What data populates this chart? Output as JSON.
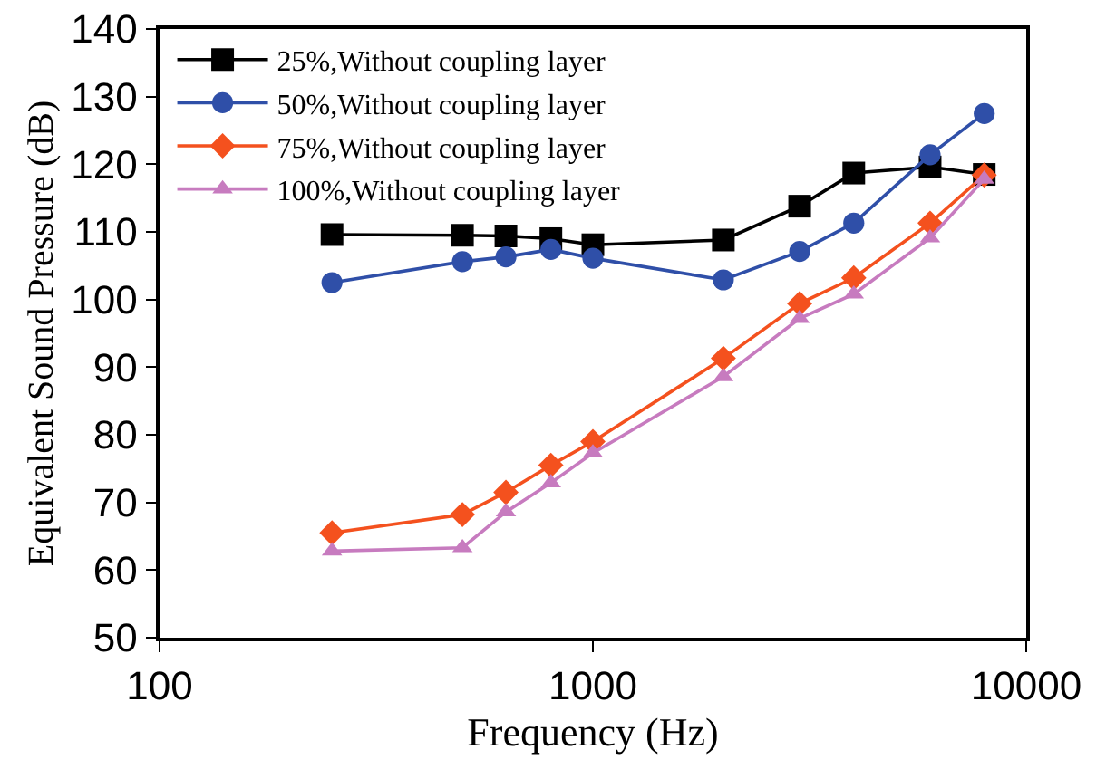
{
  "chart_data": {
    "type": "line",
    "xlabel": "Frequency (Hz)",
    "ylabel": "Equivalent Sound Pressure (dB)",
    "log": "x",
    "grid": false,
    "legend": "top left",
    "line_style": "solid",
    "x": [
      250,
      500,
      630,
      800,
      1000,
      2000,
      3000,
      4000,
      6000,
      8000
    ],
    "xlim": [
      100,
      10000
    ],
    "xticks": [
      100,
      1000,
      10000
    ],
    "ylim": [
      50,
      140
    ],
    "yticks": [
      50,
      60,
      70,
      80,
      90,
      100,
      110,
      120,
      130,
      140
    ],
    "series": [
      {
        "name": "25%,Without coupling layer",
        "color": "#000000",
        "marker": "square",
        "values": [
          109.6,
          109.5,
          109.4,
          109,
          108.1,
          108.8,
          113.8,
          118.7,
          119.6,
          118.5
        ]
      },
      {
        "name": "50%,Without coupling layer",
        "color": "#2f4fa8",
        "marker": "circle",
        "values": [
          102.5,
          105.6,
          106.3,
          107.4,
          106.1,
          102.9,
          107.1,
          111.3,
          121.4,
          127.5
        ]
      },
      {
        "name": "75%,Without coupling layer",
        "color": "#f4511e",
        "marker": "diamond",
        "values": [
          65.5,
          68.2,
          71.5,
          75.5,
          79,
          91.3,
          99.4,
          103.2,
          111.3,
          118.4
        ]
      },
      {
        "name": "100%,Without coupling layer",
        "color": "#c77bbf",
        "marker": "triangle",
        "values": [
          62.8,
          63.3,
          68.6,
          72.9,
          77.3,
          88.6,
          97.2,
          100.8,
          109.1,
          117.8
        ]
      }
    ]
  }
}
